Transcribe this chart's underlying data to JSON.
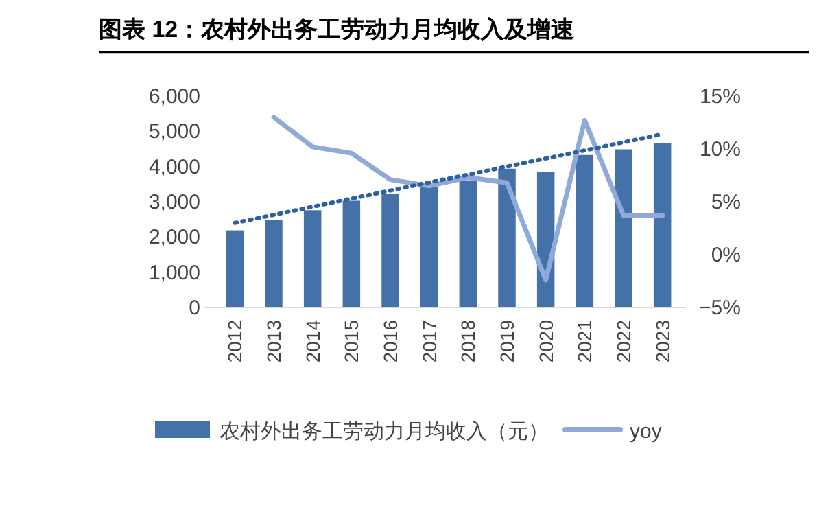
{
  "chart_data": {
    "type": "bar",
    "title": "图表 12：农村外出务工劳动力月均收入及增速",
    "categories": [
      "2012",
      "2013",
      "2014",
      "2015",
      "2016",
      "2017",
      "2018",
      "2019",
      "2020",
      "2021",
      "2022",
      "2023"
    ],
    "series": [
      {
        "name": "农村外出务工劳动力月均收入（元）",
        "color": "#4472a8",
        "values": [
          2190,
          2490,
          2760,
          3030,
          3230,
          3440,
          3610,
          3940,
          3850,
          4330,
          4490,
          4660
        ]
      },
      {
        "name": "yoy",
        "type": "line",
        "axis": "y2",
        "color": "#8fa9d9",
        "values": [
          null,
          13.0,
          10.2,
          9.6,
          7.1,
          6.5,
          7.3,
          6.8,
          -2.4,
          12.7,
          3.7,
          3.7
        ]
      },
      {
        "type": "line",
        "line_style": "dotted",
        "color": "#2e5f9e",
        "values": [
          2400,
          2630,
          2860,
          3090,
          3320,
          3550,
          3770,
          4000,
          4230,
          4460,
          4690,
          4920
        ]
      }
    ],
    "ylim": [
      0,
      6000
    ],
    "yticks": [
      0,
      {
        "value": 1000,
        "label": "1,000"
      },
      {
        "value": 2000,
        "label": "2,000"
      },
      {
        "value": 3000,
        "label": "3,000"
      },
      {
        "value": 4000,
        "label": "4,000"
      },
      {
        "value": 5000,
        "label": "5,000"
      },
      {
        "value": 6000,
        "label": "6,000"
      }
    ],
    "y2lim": [
      -5,
      15
    ],
    "y2ticks": [
      {
        "value": -5,
        "label": "−5%"
      },
      {
        "value": 0,
        "label": "0%"
      },
      {
        "value": 5,
        "label": "5%"
      },
      {
        "value": 10,
        "label": "10%"
      },
      {
        "value": 15,
        "label": "15%"
      }
    ],
    "legend": "bottom",
    "grid": false
  }
}
